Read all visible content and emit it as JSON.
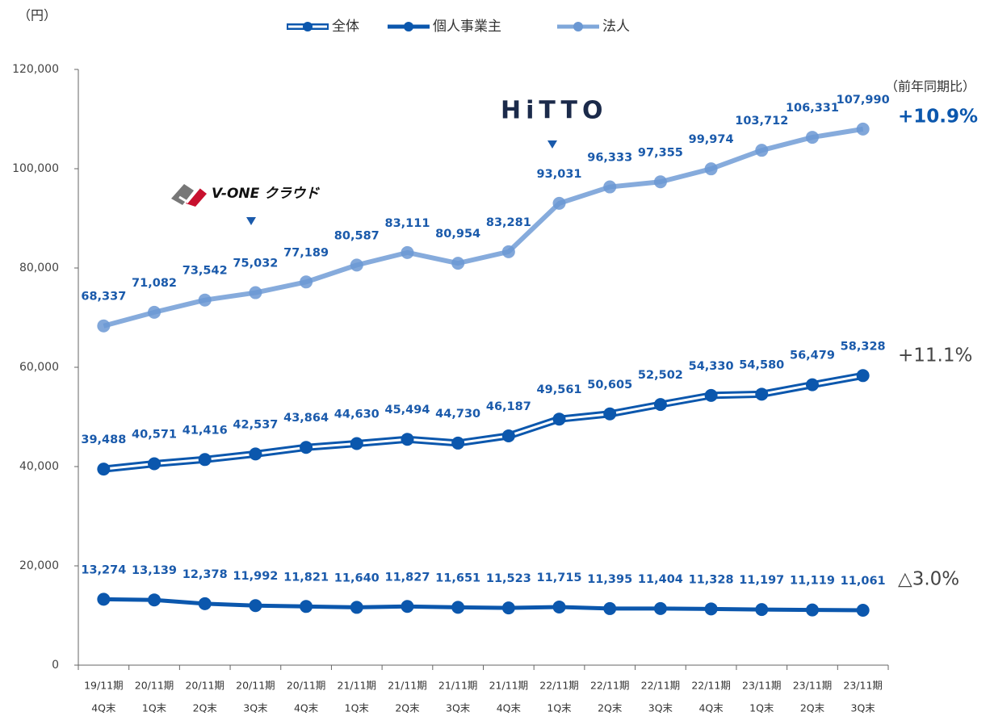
{
  "chart_data": {
    "type": "line",
    "categories": [
      [
        "19/11期",
        "4Q末"
      ],
      [
        "20/11期",
        "1Q末"
      ],
      [
        "20/11期",
        "2Q末"
      ],
      [
        "20/11期",
        "3Q末"
      ],
      [
        "20/11期",
        "4Q末"
      ],
      [
        "21/11期",
        "1Q末"
      ],
      [
        "21/11期",
        "2Q末"
      ],
      [
        "21/11期",
        "3Q末"
      ],
      [
        "21/11期",
        "4Q末"
      ],
      [
        "22/11期",
        "1Q末"
      ],
      [
        "22/11期",
        "2Q末"
      ],
      [
        "22/11期",
        "3Q末"
      ],
      [
        "22/11期",
        "4Q末"
      ],
      [
        "23/11期",
        "1Q末"
      ],
      [
        "23/11期",
        "2Q末"
      ],
      [
        "23/11期",
        "3Q末"
      ]
    ],
    "series": [
      {
        "name": "全体",
        "color": "#0b57ad",
        "line_style": "double",
        "values": [
          39488,
          40571,
          41416,
          42537,
          43864,
          44630,
          45494,
          44730,
          46187,
          49561,
          50605,
          52502,
          54330,
          54580,
          56479,
          58328
        ],
        "value_labels": [
          "39,488",
          "40,571",
          "41,416",
          "42,537",
          "43,864",
          "44,630",
          "45,494",
          "44,730",
          "46,187",
          "49,561",
          "50,605",
          "52,502",
          "54,330",
          "54,580",
          "56,479",
          "58,328"
        ]
      },
      {
        "name": "個人事業主",
        "color": "#0b57ad",
        "line_style": "solid",
        "values": [
          13274,
          13139,
          12378,
          11992,
          11821,
          11640,
          11827,
          11651,
          11523,
          11715,
          11395,
          11404,
          11328,
          11197,
          11119,
          11061
        ],
        "value_labels": [
          "13,274",
          "13,139",
          "12,378",
          "11,992",
          "11,821",
          "11,640",
          "11,827",
          "11,651",
          "11,523",
          "11,715",
          "11,395",
          "11,404",
          "11,328",
          "11,197",
          "11,119",
          "11,061"
        ]
      },
      {
        "name": "法人",
        "color": "#7fa7da",
        "line_style": "solid",
        "values": [
          68337,
          71082,
          73542,
          75032,
          77189,
          80587,
          83111,
          80954,
          83281,
          93031,
          96333,
          97355,
          99974,
          103712,
          106331,
          107990
        ],
        "value_labels": [
          "68,337",
          "71,082",
          "73,542",
          "75,032",
          "77,189",
          "80,587",
          "83,111",
          "80,954",
          "83,281",
          "93,031",
          "96,333",
          "97,355",
          "99,974",
          "103,712",
          "106,331",
          "107,990"
        ]
      }
    ],
    "ylim": [
      0,
      120000
    ],
    "yticks": [
      0,
      {
        "value": 20000,
        "label": "20,000"
      },
      {
        "value": 40000,
        "label": "40,000"
      },
      {
        "value": 60000,
        "label": "60,000"
      },
      {
        "value": 80000,
        "label": "80,000"
      },
      {
        "value": 100000,
        "label": "100,000"
      },
      {
        "value": 120000,
        "label": "120,000"
      }
    ],
    "y_unit": "（円）",
    "annotations": [
      "（前年同期比）",
      "+10.9%",
      "+11.1%",
      "△3.0%",
      "V-ONE クラウド",
      "HiTTO"
    ]
  }
}
